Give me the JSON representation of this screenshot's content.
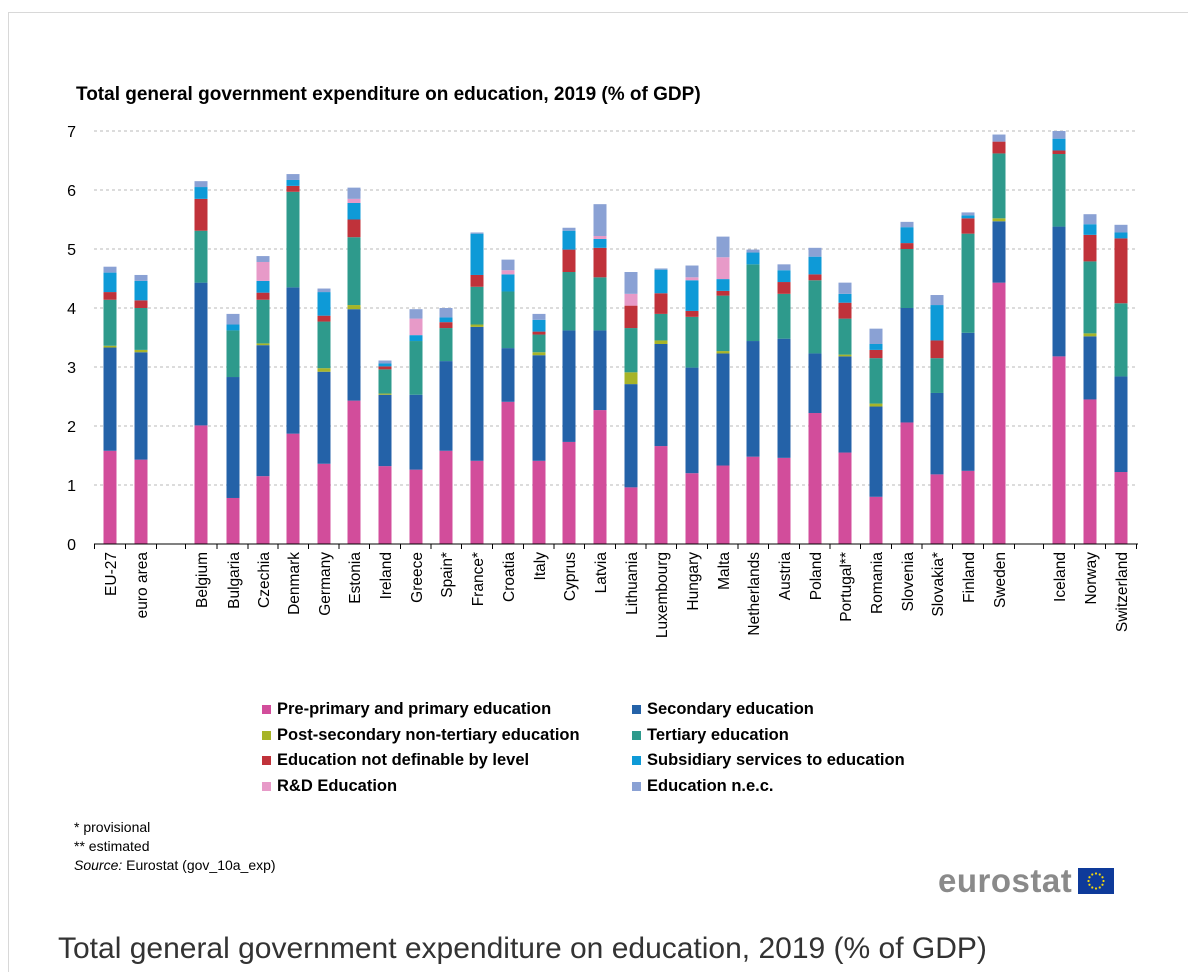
{
  "caption": "Total general government expenditure on education, 2019 (% of GDP)",
  "notes": {
    "provisional": "* provisional",
    "estimated": "** estimated",
    "source_label": "Source:",
    "source_text": " Eurostat (gov_10a_exp)"
  },
  "logo_text": "eurostat",
  "chart_data": {
    "type": "bar",
    "stacked": true,
    "title": "Total general government expenditure on education, 2019 (% of GDP)",
    "ylim": [
      0,
      7
    ],
    "yticks": [
      0,
      1,
      2,
      3,
      4,
      5,
      6,
      7
    ],
    "grid": true,
    "legend_position": "bottom",
    "categories": [
      "EU-27",
      "euro area",
      "Belgium",
      "Bulgaria",
      "Czechia",
      "Denmark",
      "Germany",
      "Estonia",
      "Ireland",
      "Greece",
      "Spain*",
      "France*",
      "Croatia",
      "Italy",
      "Cyprus",
      "Latvia",
      "Lithuania",
      "Luxembourg",
      "Hungary",
      "Malta",
      "Netherlands",
      "Austria",
      "Poland",
      "Portugal**",
      "Romania",
      "Slovenia",
      "Slovakia*",
      "Finland",
      "Sweden",
      "Iceland",
      "Norway",
      "Switzerland"
    ],
    "series": [
      {
        "name": "Pre-primary and primary education",
        "color": "#d24d9b",
        "values": [
          1.58,
          1.43,
          2.01,
          0.78,
          1.15,
          1.87,
          1.36,
          2.43,
          1.32,
          1.26,
          1.58,
          1.41,
          2.41,
          1.41,
          1.73,
          2.27,
          0.96,
          1.66,
          1.2,
          1.33,
          1.48,
          1.46,
          2.22,
          1.55,
          0.8,
          2.06,
          1.18,
          1.24,
          4.43,
          3.18,
          2.45,
          1.22
        ]
      },
      {
        "name": "Secondary education",
        "color": "#2462a8",
        "values": [
          1.75,
          1.82,
          2.42,
          2.05,
          2.22,
          2.48,
          1.56,
          1.55,
          1.21,
          1.27,
          1.52,
          2.27,
          0.91,
          1.79,
          1.89,
          1.35,
          1.75,
          1.73,
          1.79,
          1.9,
          1.96,
          2.02,
          1.01,
          1.63,
          1.53,
          1.94,
          1.38,
          2.34,
          1.04,
          2.2,
          1.07,
          1.62
        ]
      },
      {
        "name": "Post-secondary non-tertiary education",
        "color": "#a7b428",
        "values": [
          0.03,
          0.04,
          0.0,
          0.0,
          0.03,
          0.0,
          0.06,
          0.07,
          0.02,
          0.0,
          0.0,
          0.04,
          0.0,
          0.05,
          0.0,
          0.0,
          0.2,
          0.06,
          0.0,
          0.04,
          0.0,
          0.0,
          0.0,
          0.03,
          0.05,
          0.0,
          0.0,
          0.0,
          0.05,
          0.0,
          0.05,
          0.0
        ]
      },
      {
        "name": "Tertiary education",
        "color": "#2e9a8c",
        "values": [
          0.78,
          0.71,
          0.88,
          0.79,
          0.74,
          1.62,
          0.79,
          1.15,
          0.41,
          0.91,
          0.56,
          0.64,
          0.96,
          0.3,
          0.99,
          0.9,
          0.75,
          0.45,
          0.86,
          0.94,
          1.3,
          0.76,
          1.24,
          0.61,
          0.77,
          1.0,
          0.59,
          1.68,
          1.1,
          1.23,
          1.22,
          1.24
        ]
      },
      {
        "name": "Education not definable by level",
        "color": "#c0323a",
        "values": [
          0.13,
          0.13,
          0.54,
          0.0,
          0.12,
          0.1,
          0.1,
          0.3,
          0.05,
          0.0,
          0.1,
          0.2,
          0.0,
          0.05,
          0.38,
          0.5,
          0.38,
          0.35,
          0.1,
          0.08,
          0.0,
          0.2,
          0.1,
          0.27,
          0.14,
          0.1,
          0.3,
          0.26,
          0.2,
          0.06,
          0.45,
          1.1
        ]
      },
      {
        "name": "Subsidiary services to education",
        "color": "#0e9ad7",
        "values": [
          0.33,
          0.33,
          0.2,
          0.1,
          0.2,
          0.1,
          0.4,
          0.28,
          0.05,
          0.1,
          0.08,
          0.7,
          0.29,
          0.2,
          0.32,
          0.15,
          0.0,
          0.4,
          0.52,
          0.2,
          0.2,
          0.2,
          0.3,
          0.15,
          0.1,
          0.27,
          0.6,
          0.05,
          0.0,
          0.2,
          0.18,
          0.1
        ]
      },
      {
        "name": "R&D Education",
        "color": "#e79ac8",
        "values": [
          0.0,
          0.0,
          0.0,
          0.0,
          0.32,
          0.0,
          0.0,
          0.07,
          0.0,
          0.28,
          0.0,
          0.0,
          0.07,
          0.0,
          0.0,
          0.05,
          0.2,
          0.0,
          0.05,
          0.37,
          0.0,
          0.0,
          0.0,
          0.0,
          0.0,
          0.0,
          0.0,
          0.0,
          0.0,
          0.0,
          0.0,
          0.0
        ]
      },
      {
        "name": "Education n.e.c.",
        "color": "#8aa1d4",
        "values": [
          0.1,
          0.1,
          0.1,
          0.18,
          0.1,
          0.1,
          0.06,
          0.19,
          0.05,
          0.16,
          0.16,
          0.02,
          0.18,
          0.1,
          0.05,
          0.54,
          0.37,
          0.02,
          0.2,
          0.35,
          0.05,
          0.1,
          0.15,
          0.19,
          0.26,
          0.09,
          0.17,
          0.05,
          0.12,
          0.13,
          0.17,
          0.13
        ]
      }
    ]
  }
}
